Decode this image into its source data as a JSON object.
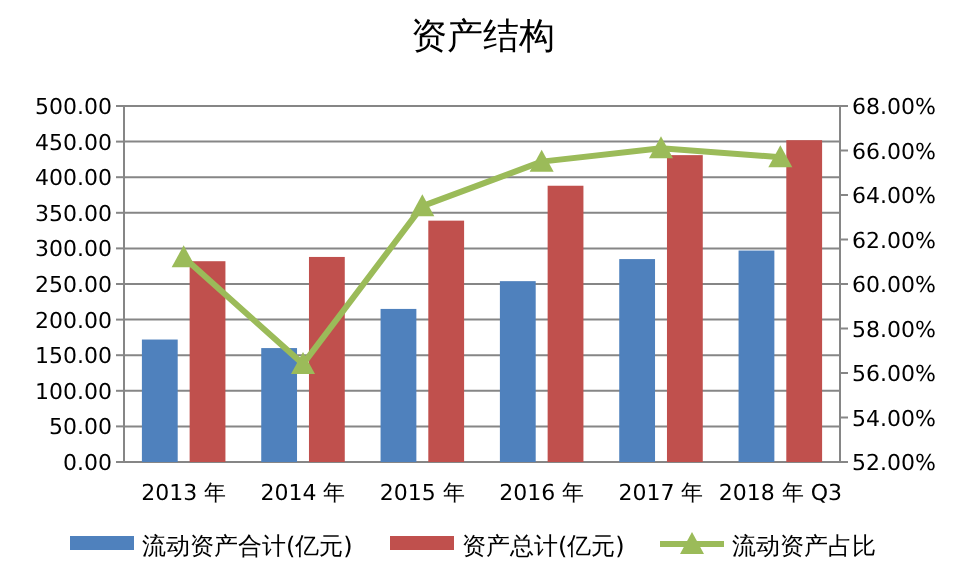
{
  "chart_data": {
    "type": "bar",
    "title": "资产结构",
    "categories": [
      "2013 年",
      "2014 年",
      "2015 年",
      "2016 年",
      "2017 年",
      "2018 年 Q3"
    ],
    "series": [
      {
        "name": "流动资产合计(亿元)",
        "color": "#4f81bd",
        "values": [
          172,
          160,
          215,
          254,
          285,
          297
        ]
      },
      {
        "name": "资产总计(亿元)",
        "color": "#c0504d",
        "values": [
          282,
          288,
          339,
          388,
          431,
          452
        ]
      },
      {
        "name": "流动资产占比",
        "type": "line",
        "axis": "y2",
        "marker": "triangle",
        "color": "#9bbb59",
        "values": [
          61.2,
          56.4,
          63.5,
          65.5,
          66.1,
          65.7
        ]
      }
    ],
    "ylim": [
      0,
      500
    ],
    "yticks": [
      {
        "value": 0,
        "label": "0.00"
      },
      {
        "value": 50,
        "label": "50.00"
      },
      {
        "value": 100,
        "label": "100.00"
      },
      {
        "value": 150,
        "label": "150.00"
      },
      {
        "value": 200,
        "label": "200.00"
      },
      {
        "value": 250,
        "label": "250.00"
      },
      {
        "value": 300,
        "label": "300.00"
      },
      {
        "value": 350,
        "label": "350.00"
      },
      {
        "value": 400,
        "label": "400.00"
      },
      {
        "value": 450,
        "label": "450.00"
      },
      {
        "value": 500,
        "label": "500.00"
      }
    ],
    "y2lim": [
      52,
      68
    ],
    "y2ticks": [
      {
        "value": 52,
        "label": "52.00%"
      },
      {
        "value": 54,
        "label": "54.00%"
      },
      {
        "value": 56,
        "label": "56.00%"
      },
      {
        "value": 58,
        "label": "58.00%"
      },
      {
        "value": 60,
        "label": "60.00%"
      },
      {
        "value": 62,
        "label": "62.00%"
      },
      {
        "value": 64,
        "label": "64.00%"
      },
      {
        "value": 66,
        "label": "66.00%"
      },
      {
        "value": 68,
        "label": "68.00%"
      }
    ],
    "grid": "y",
    "legend": "bottom"
  }
}
